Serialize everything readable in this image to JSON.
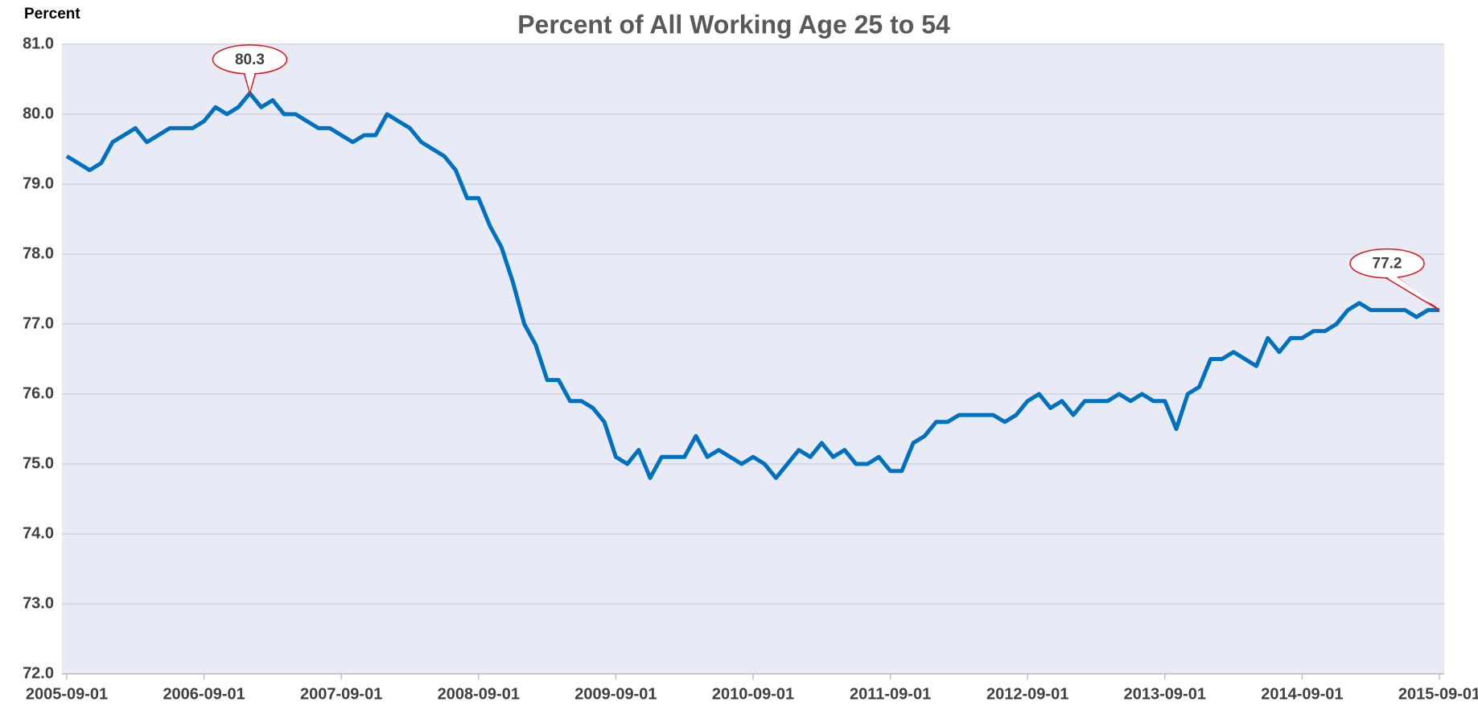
{
  "chart_data": {
    "type": "line",
    "title": "Percent of All Working Age 25 to 54",
    "ylabel": "Percent",
    "color": "#0070c0",
    "grid": true,
    "ylim": [
      72,
      81
    ],
    "yticks": [
      {
        "value": 72,
        "label": "72.0"
      },
      {
        "value": 73,
        "label": "73.0"
      },
      {
        "value": 74,
        "label": "74.0"
      },
      {
        "value": 75,
        "label": "75.0"
      },
      {
        "value": 76,
        "label": "76.0"
      },
      {
        "value": 77,
        "label": "77.0"
      },
      {
        "value": 78,
        "label": "78.0"
      },
      {
        "value": 79,
        "label": "79.0"
      },
      {
        "value": 80,
        "label": "80.0"
      },
      {
        "value": 81,
        "label": "81.0"
      }
    ],
    "categories": [
      "2005-09-01",
      null,
      null,
      null,
      null,
      null,
      null,
      null,
      null,
      null,
      null,
      null,
      "2006-09-01",
      null,
      null,
      null,
      null,
      null,
      null,
      null,
      null,
      null,
      null,
      null,
      "2007-09-01",
      null,
      null,
      null,
      null,
      null,
      null,
      null,
      null,
      null,
      null,
      null,
      "2008-09-01",
      null,
      null,
      null,
      null,
      null,
      null,
      null,
      null,
      null,
      null,
      null,
      "2009-09-01",
      null,
      null,
      null,
      null,
      null,
      null,
      null,
      null,
      null,
      null,
      null,
      "2010-09-01",
      null,
      null,
      null,
      null,
      null,
      null,
      null,
      null,
      null,
      null,
      null,
      "2011-09-01",
      null,
      null,
      null,
      null,
      null,
      null,
      null,
      null,
      null,
      null,
      null,
      "2012-09-01",
      null,
      null,
      null,
      null,
      null,
      null,
      null,
      null,
      null,
      null,
      null,
      "2013-09-01",
      null,
      null,
      null,
      null,
      null,
      null,
      null,
      null,
      null,
      null,
      null,
      "2014-09-01",
      null,
      null,
      null,
      null,
      null,
      null,
      null,
      null,
      null,
      null,
      null,
      "2015-09-01"
    ],
    "values": [
      79.4,
      79.3,
      79.2,
      79.3,
      79.6,
      79.7,
      79.8,
      79.6,
      79.7,
      79.8,
      79.8,
      79.8,
      79.9,
      80.1,
      80.0,
      80.1,
      80.3,
      80.1,
      80.2,
      80.0,
      80.0,
      79.9,
      79.8,
      79.8,
      79.7,
      79.6,
      79.7,
      79.7,
      80.0,
      79.9,
      79.8,
      79.6,
      79.5,
      79.4,
      79.2,
      78.8,
      78.8,
      78.4,
      78.1,
      77.6,
      77.0,
      76.7,
      76.2,
      76.2,
      75.9,
      75.9,
      75.8,
      75.6,
      75.1,
      75.0,
      75.2,
      74.8,
      75.1,
      75.1,
      75.1,
      75.4,
      75.1,
      75.2,
      75.1,
      75.0,
      75.1,
      75.0,
      74.8,
      75.0,
      75.2,
      75.1,
      75.3,
      75.1,
      75.2,
      75.0,
      75.0,
      75.1,
      74.9,
      74.9,
      75.3,
      75.4,
      75.6,
      75.6,
      75.7,
      75.7,
      75.7,
      75.7,
      75.6,
      75.7,
      75.9,
      76.0,
      75.8,
      75.9,
      75.7,
      75.9,
      75.9,
      75.9,
      76.0,
      75.9,
      76.0,
      75.9,
      75.9,
      75.5,
      76.0,
      76.1,
      76.5,
      76.5,
      76.6,
      76.5,
      76.4,
      76.8,
      76.6,
      76.8,
      76.8,
      76.9,
      76.9,
      77.0,
      77.2,
      77.3,
      77.2,
      77.2,
      77.2,
      77.2,
      77.1,
      77.2,
      77.2
    ],
    "value_labels": [
      null,
      null,
      null,
      null,
      null,
      null,
      null,
      null,
      null,
      null,
      null,
      null,
      null,
      null,
      null,
      null,
      "80.3",
      null,
      null,
      null,
      null,
      null,
      null,
      null,
      null,
      null,
      null,
      null,
      null,
      null,
      null,
      null,
      null,
      null,
      null,
      null,
      null,
      null,
      null,
      null,
      null,
      null,
      null,
      null,
      null,
      null,
      null,
      null,
      null,
      null,
      null,
      null,
      null,
      null,
      null,
      null,
      null,
      null,
      null,
      null,
      null,
      null,
      null,
      null,
      null,
      null,
      null,
      null,
      null,
      null,
      null,
      null,
      null,
      null,
      null,
      null,
      null,
      null,
      null,
      null,
      null,
      null,
      null,
      null,
      null,
      null,
      null,
      null,
      null,
      null,
      null,
      null,
      null,
      null,
      null,
      null,
      null,
      null,
      null,
      null,
      null,
      null,
      null,
      null,
      null,
      null,
      null,
      null,
      null,
      null,
      null,
      null,
      null,
      null,
      null,
      null,
      null,
      null,
      null,
      null,
      "77.2"
    ]
  }
}
